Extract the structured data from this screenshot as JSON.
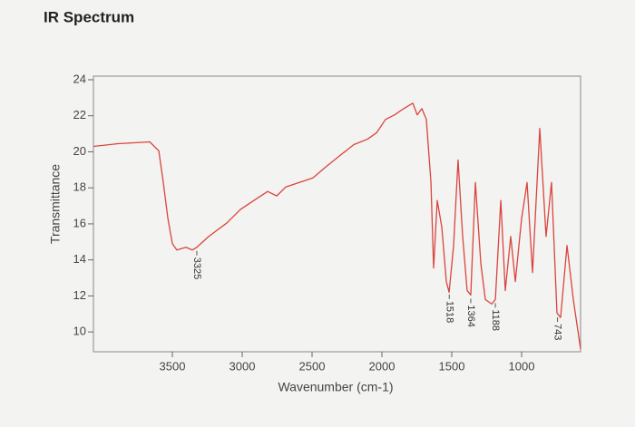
{
  "chart_data": {
    "type": "line",
    "title": "IR Spectrum",
    "xlabel": "Wavenumber (cm-1)",
    "ylabel": "Transmittance",
    "x": [
      4065,
      3890,
      3662,
      3597,
      3565,
      3532,
      3500,
      3468,
      3403,
      3357,
      3325,
      3240,
      3110,
      3013,
      2916,
      2818,
      2753,
      2688,
      2591,
      2494,
      2396,
      2299,
      2201,
      2104,
      2039,
      1974,
      1909,
      1844,
      1779,
      1747,
      1714,
      1682,
      1649,
      1630,
      1604,
      1571,
      1539,
      1519,
      1487,
      1455,
      1422,
      1390,
      1364,
      1331,
      1292,
      1260,
      1214,
      1188,
      1149,
      1117,
      1078,
      1045,
      1000,
      961,
      922,
      870,
      825,
      786,
      747,
      721,
      675,
      630,
      578
    ],
    "series": [
      {
        "name": "Transmittance",
        "color": "#d9453d",
        "values": [
          20.3,
          20.45,
          20.55,
          20.05,
          18.3,
          16.3,
          14.9,
          14.55,
          14.7,
          14.55,
          14.7,
          15.3,
          16.05,
          16.8,
          17.3,
          17.8,
          17.55,
          18.05,
          18.3,
          18.55,
          19.2,
          19.8,
          20.4,
          20.7,
          21.05,
          21.8,
          22.05,
          22.4,
          22.7,
          22.05,
          22.4,
          21.8,
          18.3,
          13.55,
          17.3,
          15.8,
          12.8,
          12.2,
          14.8,
          19.55,
          15.3,
          12.3,
          12.05,
          18.3,
          13.8,
          11.8,
          11.55,
          11.8,
          17.3,
          12.3,
          15.3,
          12.8,
          16.3,
          18.3,
          13.3,
          21.3,
          15.3,
          18.3,
          11.05,
          10.8,
          14.8,
          11.8,
          9.05
        ]
      }
    ],
    "annotations": [
      {
        "text": "3325",
        "x": 3325
      },
      {
        "text": "1518",
        "x": 1518
      },
      {
        "text": "1364",
        "x": 1364
      },
      {
        "text": "1188",
        "x": 1188
      },
      {
        "text": "743",
        "x": 743
      }
    ],
    "xlim": [
      4065,
      578
    ],
    "xticks": [
      3500,
      3000,
      2500,
      2000,
      1500,
      1000
    ],
    "ylim": [
      8.9,
      24.2
    ],
    "yticks": [
      10,
      12,
      14,
      16,
      18,
      20,
      22,
      24
    ]
  }
}
